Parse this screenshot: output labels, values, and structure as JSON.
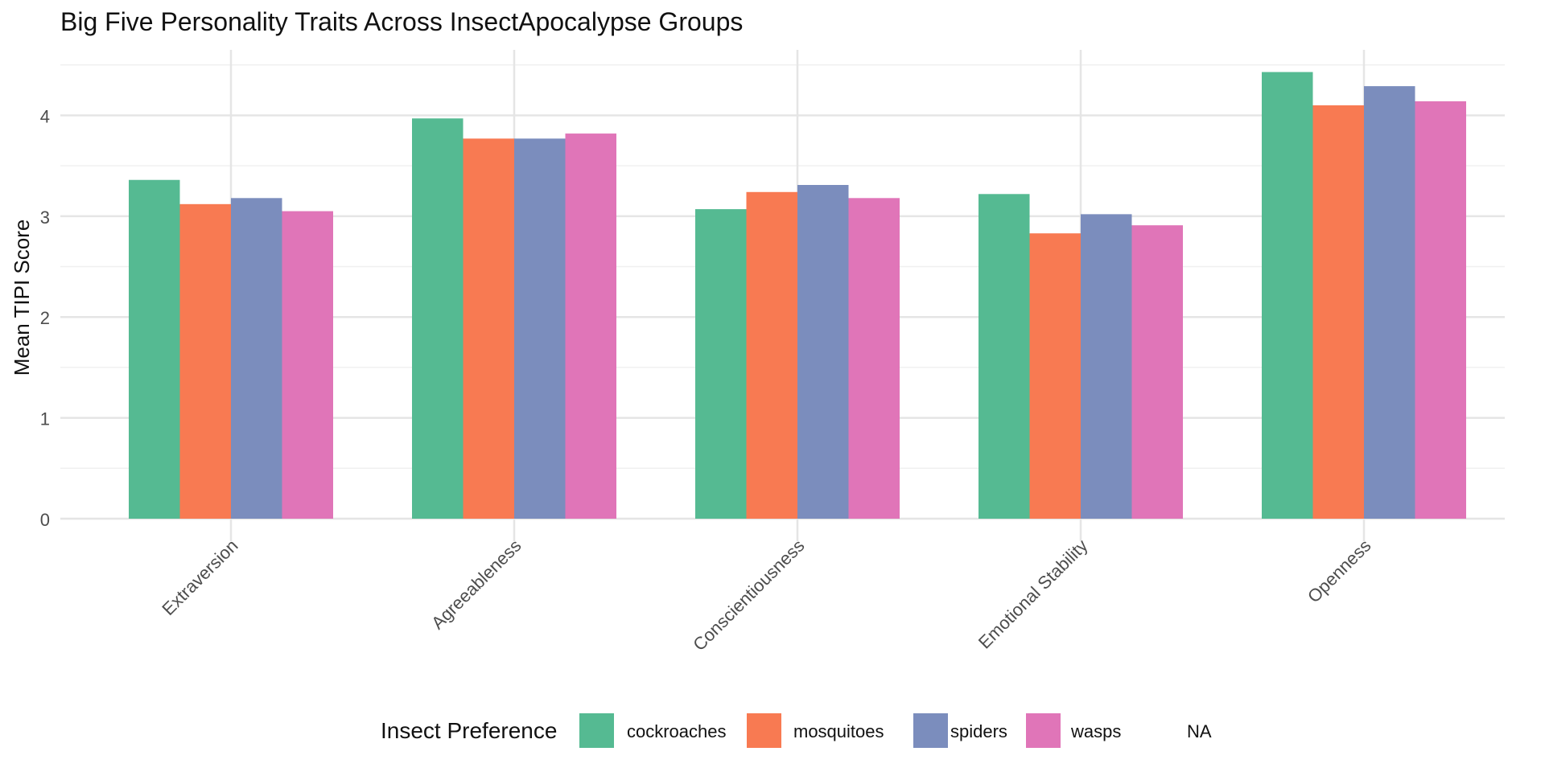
{
  "chart_data": {
    "type": "bar",
    "title": "Big Five Personality Traits Across InsectApocalypse Groups",
    "xlabel": "",
    "ylabel": "Mean TIPI Score",
    "ylim": [
      0,
      4.65
    ],
    "yticks": [
      0,
      1,
      2,
      3,
      4
    ],
    "grid": true,
    "legend_position": "bottom",
    "legend_title": "Insect Preference",
    "categories": [
      "Extraversion",
      "Agreeableness",
      "Conscientiousness",
      "Emotional Stability",
      "Openness"
    ],
    "series": [
      {
        "name": "cockroaches",
        "color": "#55BA92",
        "values": [
          3.36,
          3.97,
          3.07,
          3.22,
          4.43
        ]
      },
      {
        "name": "mosquitoes",
        "color": "#F87A52",
        "values": [
          3.12,
          3.77,
          3.24,
          2.83,
          4.1
        ]
      },
      {
        "name": "spiders",
        "color": "#7B8DBD",
        "values": [
          3.18,
          3.77,
          3.31,
          3.02,
          4.29
        ]
      },
      {
        "name": "wasps",
        "color": "#E075B8",
        "values": [
          3.05,
          3.82,
          3.18,
          2.91,
          4.14
        ]
      }
    ],
    "legend_extra": "NA"
  }
}
